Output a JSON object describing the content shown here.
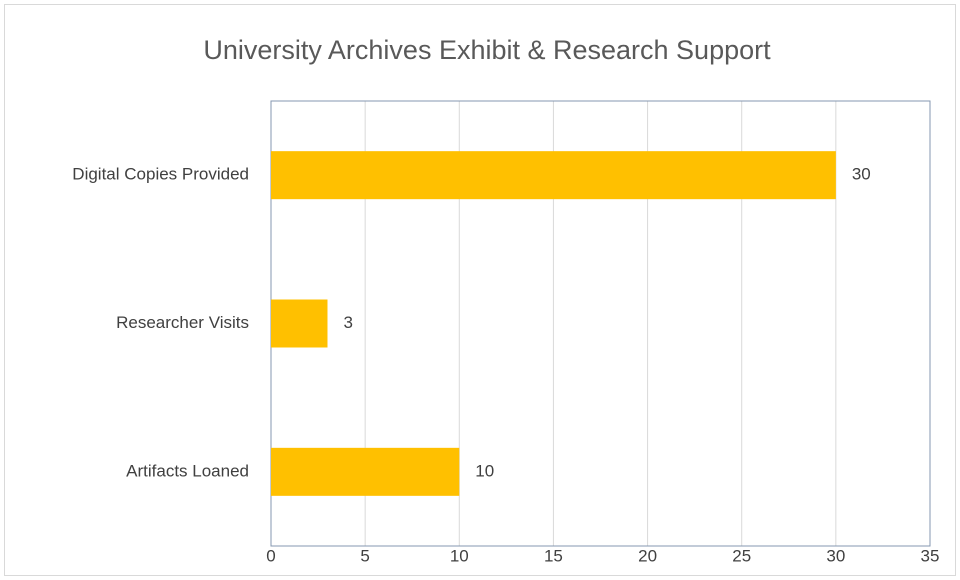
{
  "chart_data": {
    "type": "bar",
    "orientation": "horizontal",
    "title": "University Archives Exhibit & Research Support",
    "categories": [
      "Digital Copies Provided",
      "Researcher Visits",
      "Artifacts Loaned"
    ],
    "values": [
      30,
      3,
      10
    ],
    "color": "#ffc000",
    "xlim": [
      0,
      35
    ],
    "xticks": [
      0,
      5,
      10,
      15,
      20,
      25,
      30,
      35
    ],
    "grid": true
  }
}
